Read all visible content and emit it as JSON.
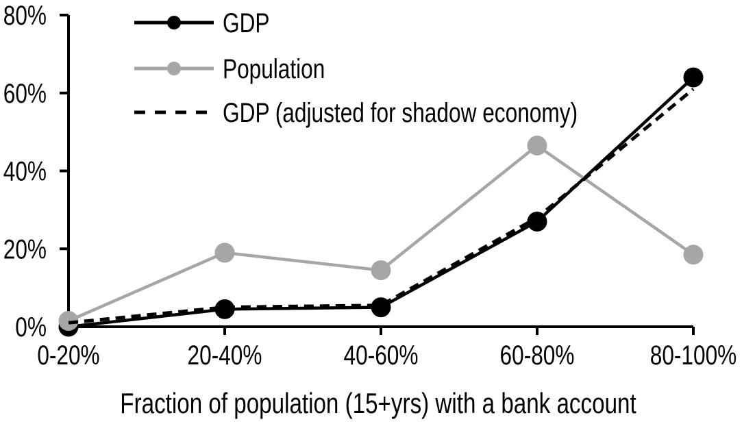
{
  "chart_data": {
    "type": "line",
    "title": "",
    "xlabel": "Fraction of population (15+yrs) with a bank account",
    "ylabel": "",
    "categories": [
      "0-20%",
      "20-40%",
      "40-60%",
      "60-80%",
      "80-100%"
    ],
    "y_tick_labels": [
      "0%",
      "20%",
      "40%",
      "60%",
      "80%"
    ],
    "ylim": [
      0,
      80
    ],
    "y_tick_step": 20,
    "grid": false,
    "legend_position": "top-left-inside",
    "series": [
      {
        "name": "GDP",
        "values": [
          0,
          4.5,
          5,
          27,
          64
        ],
        "color": "#000000",
        "line_style": "solid",
        "marker": "circle"
      },
      {
        "name": "Population",
        "values": [
          1.5,
          19,
          14.5,
          46.5,
          18.5
        ],
        "color": "#A6A6A6",
        "line_style": "solid",
        "marker": "circle"
      },
      {
        "name": "GDP (adjusted for shadow economy)",
        "values": [
          1,
          5,
          5.5,
          28,
          61
        ],
        "color": "#000000",
        "line_style": "dashed",
        "marker": "none"
      }
    ],
    "colors": {
      "axis": "#000000",
      "text": "#000000",
      "gray_series": "#A6A6A6",
      "background": "#FFFFFF"
    }
  }
}
